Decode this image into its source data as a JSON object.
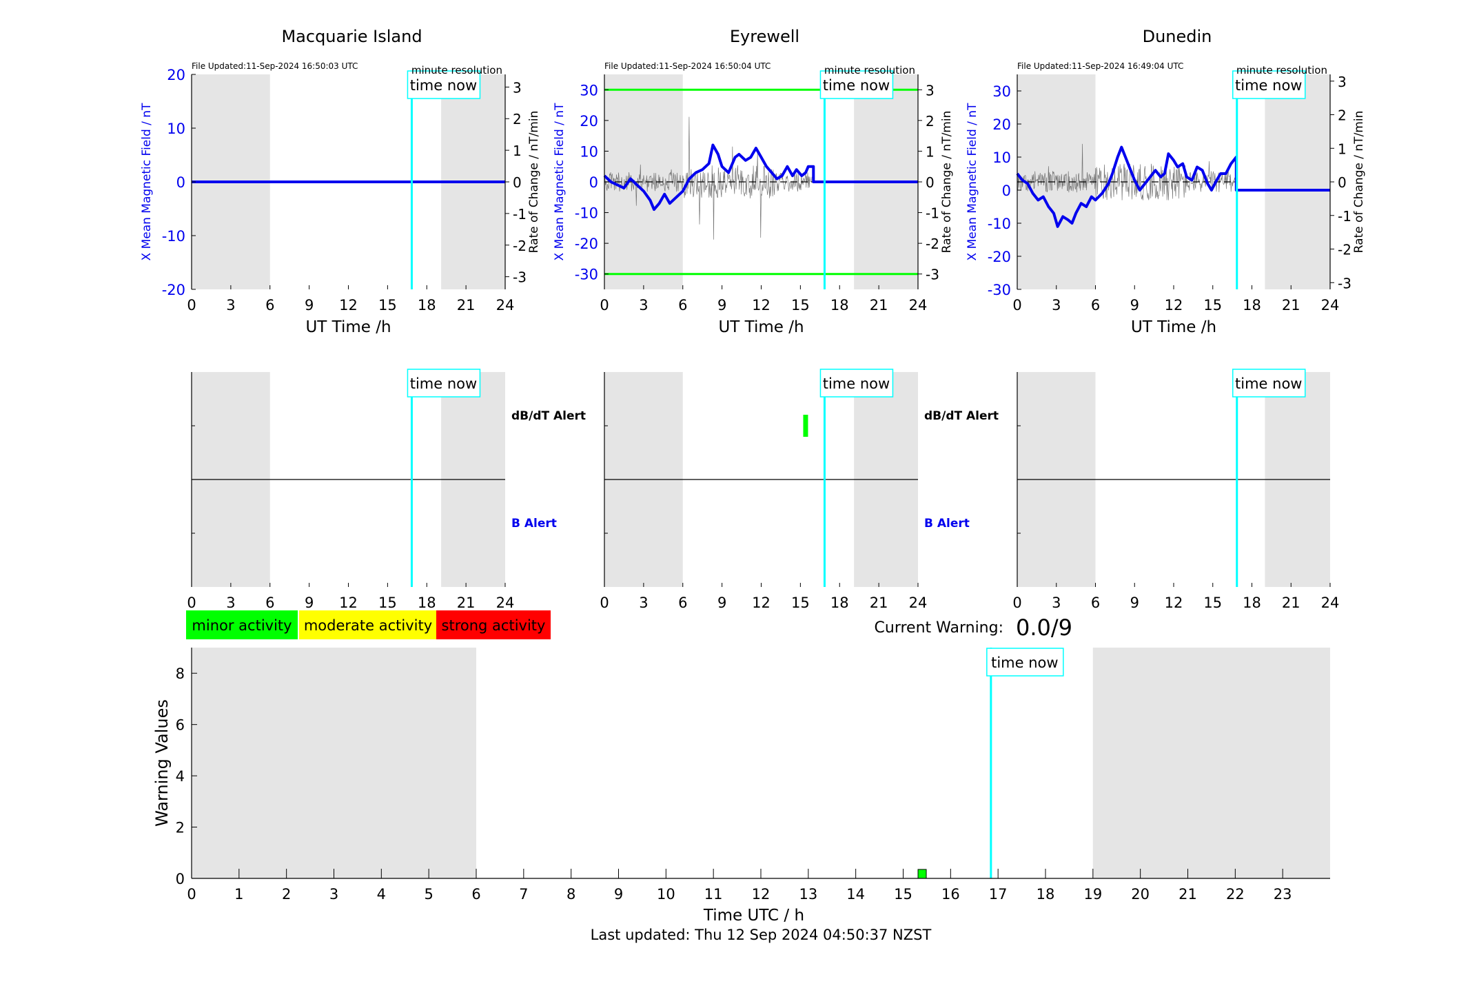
{
  "time_now_label": "time now",
  "minute_res_label": "minute resolution",
  "xlabel_top": "UT Time /h",
  "ylabel_left": "X Mean Magnetic Field / nT",
  "ylabel_right": "Rate of Change / nT/min",
  "dbdt_alert_label": "dB/dT Alert",
  "b_alert_label": "B Alert",
  "legend": [
    {
      "label": "minor activity",
      "color": "#00ff00"
    },
    {
      "label": "moderate activity",
      "color": "#ffff00"
    },
    {
      "label": "strong activity",
      "color": "#ff0000"
    }
  ],
  "current_warning_label": "Current Warning:",
  "current_warning_value": "0.0/9",
  "last_updated": "Last updated: Thu 12 Sep 2024 04:50:37 NZST",
  "colors": {
    "field": "#0000ee",
    "time_now": "#00ffff",
    "night": "#e5e5e5",
    "threshold": "#00ff00"
  },
  "chart_data": [
    {
      "type": "line",
      "station": "Macquarie Island",
      "file_updated": "File Updated:11-Sep-2024 16:50:03 UTC",
      "xlim": [
        0,
        24
      ],
      "xticks": [
        "0",
        "3",
        "6",
        "9",
        "12",
        "15",
        "18",
        "21",
        "24"
      ],
      "ylim": [
        -20,
        20
      ],
      "yticks": [
        "20",
        "10",
        "0",
        "-10",
        "-20"
      ],
      "y2lim": [
        -3.4,
        3.4
      ],
      "y2ticks": [
        "3",
        "2",
        "1",
        "0",
        "-1",
        "-2",
        "-3"
      ],
      "night_bands": [
        [
          0,
          6
        ],
        [
          19.1,
          24
        ]
      ],
      "time_now": 16.85,
      "thresholds": [],
      "series": [
        {
          "values": [
            [
              0,
              0
            ],
            [
              24,
              0
            ]
          ]
        }
      ]
    },
    {
      "type": "line",
      "station": "Eyrewell",
      "file_updated": "File Updated:11-Sep-2024 16:50:04 UTC",
      "xlim": [
        0,
        24
      ],
      "xticks": [
        "0",
        "3",
        "6",
        "9",
        "12",
        "15",
        "18",
        "21",
        "24"
      ],
      "ylim": [
        -35,
        35
      ],
      "yticks": [
        "30",
        "20",
        "10",
        "0",
        "-10",
        "-20",
        "-30"
      ],
      "y2lim": [
        -3.5,
        3.5
      ],
      "y2ticks": [
        "3",
        "2",
        "1",
        "0",
        "-1",
        "-2",
        "-3"
      ],
      "night_bands": [
        [
          0,
          6
        ],
        [
          19.1,
          24
        ]
      ],
      "time_now": 16.85,
      "thresholds": [
        30,
        -30
      ],
      "series": [
        {
          "values": [
            [
              0,
              2
            ],
            [
              0.5,
              0
            ],
            [
              1,
              -1
            ],
            [
              1.5,
              -2
            ],
            [
              2,
              1
            ],
            [
              2.5,
              -1
            ],
            [
              3,
              -3
            ],
            [
              3.5,
              -6
            ],
            [
              3.8,
              -9
            ],
            [
              4.2,
              -7
            ],
            [
              4.6,
              -4
            ],
            [
              5,
              -7
            ],
            [
              5.5,
              -5
            ],
            [
              6,
              -3
            ],
            [
              6.5,
              1
            ],
            [
              7,
              3
            ],
            [
              7.5,
              4
            ],
            [
              8,
              6
            ],
            [
              8.3,
              12
            ],
            [
              8.7,
              9
            ],
            [
              9,
              5
            ],
            [
              9.5,
              3
            ],
            [
              10,
              8
            ],
            [
              10.3,
              9
            ],
            [
              10.8,
              7
            ],
            [
              11.2,
              8
            ],
            [
              11.6,
              11
            ],
            [
              12,
              8
            ],
            [
              12.4,
              5
            ],
            [
              12.8,
              3
            ],
            [
              13.2,
              1
            ],
            [
              13.6,
              2
            ],
            [
              14,
              5
            ],
            [
              14.4,
              2
            ],
            [
              14.7,
              4
            ],
            [
              15.1,
              2
            ],
            [
              15.4,
              3
            ],
            [
              15.6,
              5
            ],
            [
              16,
              5
            ],
            [
              16,
              0
            ],
            [
              24,
              0
            ]
          ]
        }
      ]
    },
    {
      "type": "line",
      "station": "Dunedin",
      "file_updated": "File Updated:11-Sep-2024 16:49:04 UTC",
      "xlim": [
        0,
        24
      ],
      "xticks": [
        "0",
        "3",
        "6",
        "9",
        "12",
        "15",
        "18",
        "21",
        "24"
      ],
      "ylim": [
        -30,
        35
      ],
      "yticks": [
        "30",
        "20",
        "10",
        "0",
        "-10",
        "-20",
        "-30"
      ],
      "y2lim": [
        -3.2,
        3.2
      ],
      "y2ticks": [
        "3",
        "2",
        "1",
        "0",
        "-1",
        "-2",
        "-3"
      ],
      "night_bands": [
        [
          0,
          6
        ],
        [
          19,
          24
        ]
      ],
      "time_now": 16.85,
      "thresholds": [],
      "series": [
        {
          "values": [
            [
              0,
              5
            ],
            [
              0.4,
              3
            ],
            [
              0.8,
              2
            ],
            [
              1.2,
              -1
            ],
            [
              1.6,
              -3
            ],
            [
              2,
              -2
            ],
            [
              2.4,
              -5
            ],
            [
              2.8,
              -7
            ],
            [
              3.1,
              -11
            ],
            [
              3.5,
              -8
            ],
            [
              3.9,
              -9
            ],
            [
              4.2,
              -10
            ],
            [
              4.5,
              -7
            ],
            [
              4.9,
              -4
            ],
            [
              5.3,
              -5
            ],
            [
              5.7,
              -2
            ],
            [
              6,
              -3
            ],
            [
              6.5,
              -1
            ],
            [
              7,
              2
            ],
            [
              7.3,
              5
            ],
            [
              7.7,
              10
            ],
            [
              8,
              13
            ],
            [
              8.3,
              10
            ],
            [
              8.7,
              6
            ],
            [
              9,
              3
            ],
            [
              9.4,
              0
            ],
            [
              9.8,
              2
            ],
            [
              10.2,
              4
            ],
            [
              10.6,
              6
            ],
            [
              11,
              4
            ],
            [
              11.3,
              5
            ],
            [
              11.6,
              11
            ],
            [
              12,
              9
            ],
            [
              12.3,
              7
            ],
            [
              12.7,
              8
            ],
            [
              13,
              4
            ],
            [
              13.4,
              3
            ],
            [
              13.8,
              7
            ],
            [
              14.2,
              6
            ],
            [
              14.6,
              2
            ],
            [
              14.9,
              0
            ],
            [
              15.3,
              3
            ],
            [
              15.6,
              5
            ],
            [
              16,
              5
            ],
            [
              16.4,
              8
            ],
            [
              16.8,
              10
            ],
            [
              16.8,
              0
            ],
            [
              24,
              0
            ]
          ]
        }
      ]
    },
    {
      "type": "bar",
      "alerts": [
        {
          "station": "Macquarie Island",
          "dbdt": [],
          "b": []
        },
        {
          "station": "Eyrewell",
          "dbdt": [
            15.4
          ],
          "b": []
        },
        {
          "station": "Dunedin",
          "dbdt": [],
          "b": []
        }
      ],
      "xlim": [
        0,
        24
      ],
      "xticks": [
        "0",
        "3",
        "6",
        "9",
        "12",
        "15",
        "18",
        "21",
        "24"
      ]
    },
    {
      "type": "bar",
      "xlabel": "Time UTC / h",
      "ylabel": "Warning Values",
      "xlim": [
        0,
        24
      ],
      "xticks": [
        "0",
        "1",
        "2",
        "3",
        "4",
        "5",
        "6",
        "7",
        "8",
        "9",
        "10",
        "11",
        "12",
        "13",
        "14",
        "15",
        "16",
        "17",
        "18",
        "19",
        "20",
        "21",
        "22",
        "23"
      ],
      "ylim": [
        0,
        9
      ],
      "yticks": [
        "0",
        "2",
        "4",
        "6",
        "8"
      ],
      "night_bands": [
        [
          0,
          6
        ],
        [
          19,
          24
        ]
      ],
      "time_now": 16.85,
      "bars": [
        {
          "x": 15.4,
          "value": 0.35,
          "color": "#00ff00"
        }
      ]
    }
  ]
}
